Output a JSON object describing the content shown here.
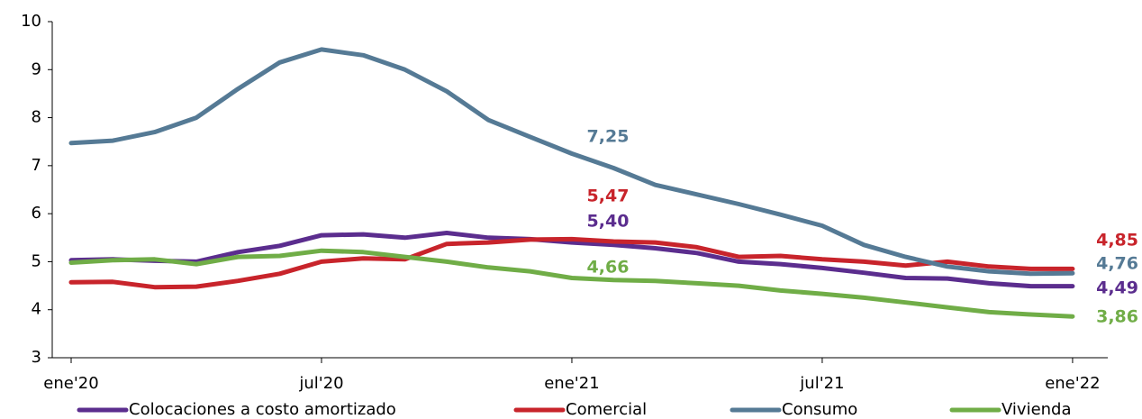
{
  "chart_data": {
    "type": "line",
    "categories": [
      "ene'20",
      null,
      null,
      null,
      null,
      null,
      "jul'20",
      null,
      null,
      null,
      null,
      null,
      "ene'21",
      null,
      null,
      null,
      null,
      null,
      "jul'21",
      null,
      null,
      null,
      null,
      null,
      "ene'22"
    ],
    "ylim": [
      3,
      10
    ],
    "yticks": [
      3,
      4,
      5,
      6,
      7,
      8,
      9,
      10
    ],
    "series": [
      {
        "name": "Colocaciones a costo amortizado",
        "color": "#5b2d8e",
        "values": [
          5.03,
          5.05,
          5.02,
          5.0,
          5.2,
          5.33,
          5.55,
          5.57,
          5.5,
          5.6,
          5.5,
          5.47,
          5.4,
          5.35,
          5.28,
          5.18,
          5.0,
          4.95,
          4.87,
          4.77,
          4.66,
          4.65,
          4.55,
          4.49,
          4.49
        ],
        "value_labels": [
          null,
          null,
          null,
          null,
          null,
          null,
          null,
          null,
          null,
          null,
          null,
          null,
          "5,40",
          null,
          null,
          null,
          null,
          null,
          null,
          null,
          null,
          null,
          null,
          null,
          "4,49"
        ]
      },
      {
        "name": "Comercial",
        "color": "#c8242b",
        "values": [
          4.57,
          4.58,
          4.47,
          4.48,
          4.6,
          4.75,
          5.0,
          5.07,
          5.05,
          5.37,
          5.4,
          5.46,
          5.47,
          5.42,
          5.4,
          5.3,
          5.1,
          5.12,
          5.05,
          5.0,
          4.92,
          5.0,
          4.9,
          4.85,
          4.85
        ],
        "value_labels": [
          null,
          null,
          null,
          null,
          null,
          null,
          null,
          null,
          null,
          null,
          null,
          null,
          "5,47",
          null,
          null,
          null,
          null,
          null,
          null,
          null,
          null,
          null,
          null,
          null,
          "4,85"
        ]
      },
      {
        "name": "Consumo",
        "color": "#557a95",
        "values": [
          7.47,
          7.52,
          7.7,
          8.0,
          8.6,
          9.15,
          9.42,
          9.3,
          9.0,
          8.55,
          7.95,
          7.6,
          7.25,
          6.95,
          6.6,
          6.4,
          6.2,
          5.98,
          5.75,
          5.35,
          5.1,
          4.9,
          4.8,
          4.75,
          4.76
        ],
        "value_labels": [
          null,
          null,
          null,
          null,
          null,
          null,
          null,
          null,
          null,
          null,
          null,
          null,
          "7,25",
          null,
          null,
          null,
          null,
          null,
          null,
          null,
          null,
          null,
          null,
          null,
          "4,76"
        ]
      },
      {
        "name": "Vivienda",
        "color": "#70ad47",
        "values": [
          4.98,
          5.03,
          5.05,
          4.95,
          5.1,
          5.12,
          5.23,
          5.2,
          5.1,
          5.0,
          4.88,
          4.8,
          4.66,
          4.62,
          4.6,
          4.55,
          4.5,
          4.4,
          4.33,
          4.25,
          4.15,
          4.05,
          3.95,
          3.9,
          3.86
        ],
        "value_labels": [
          null,
          null,
          null,
          null,
          null,
          null,
          null,
          null,
          null,
          null,
          null,
          null,
          "4,66",
          null,
          null,
          null,
          null,
          null,
          null,
          null,
          null,
          null,
          null,
          null,
          "3,86"
        ]
      }
    ]
  }
}
